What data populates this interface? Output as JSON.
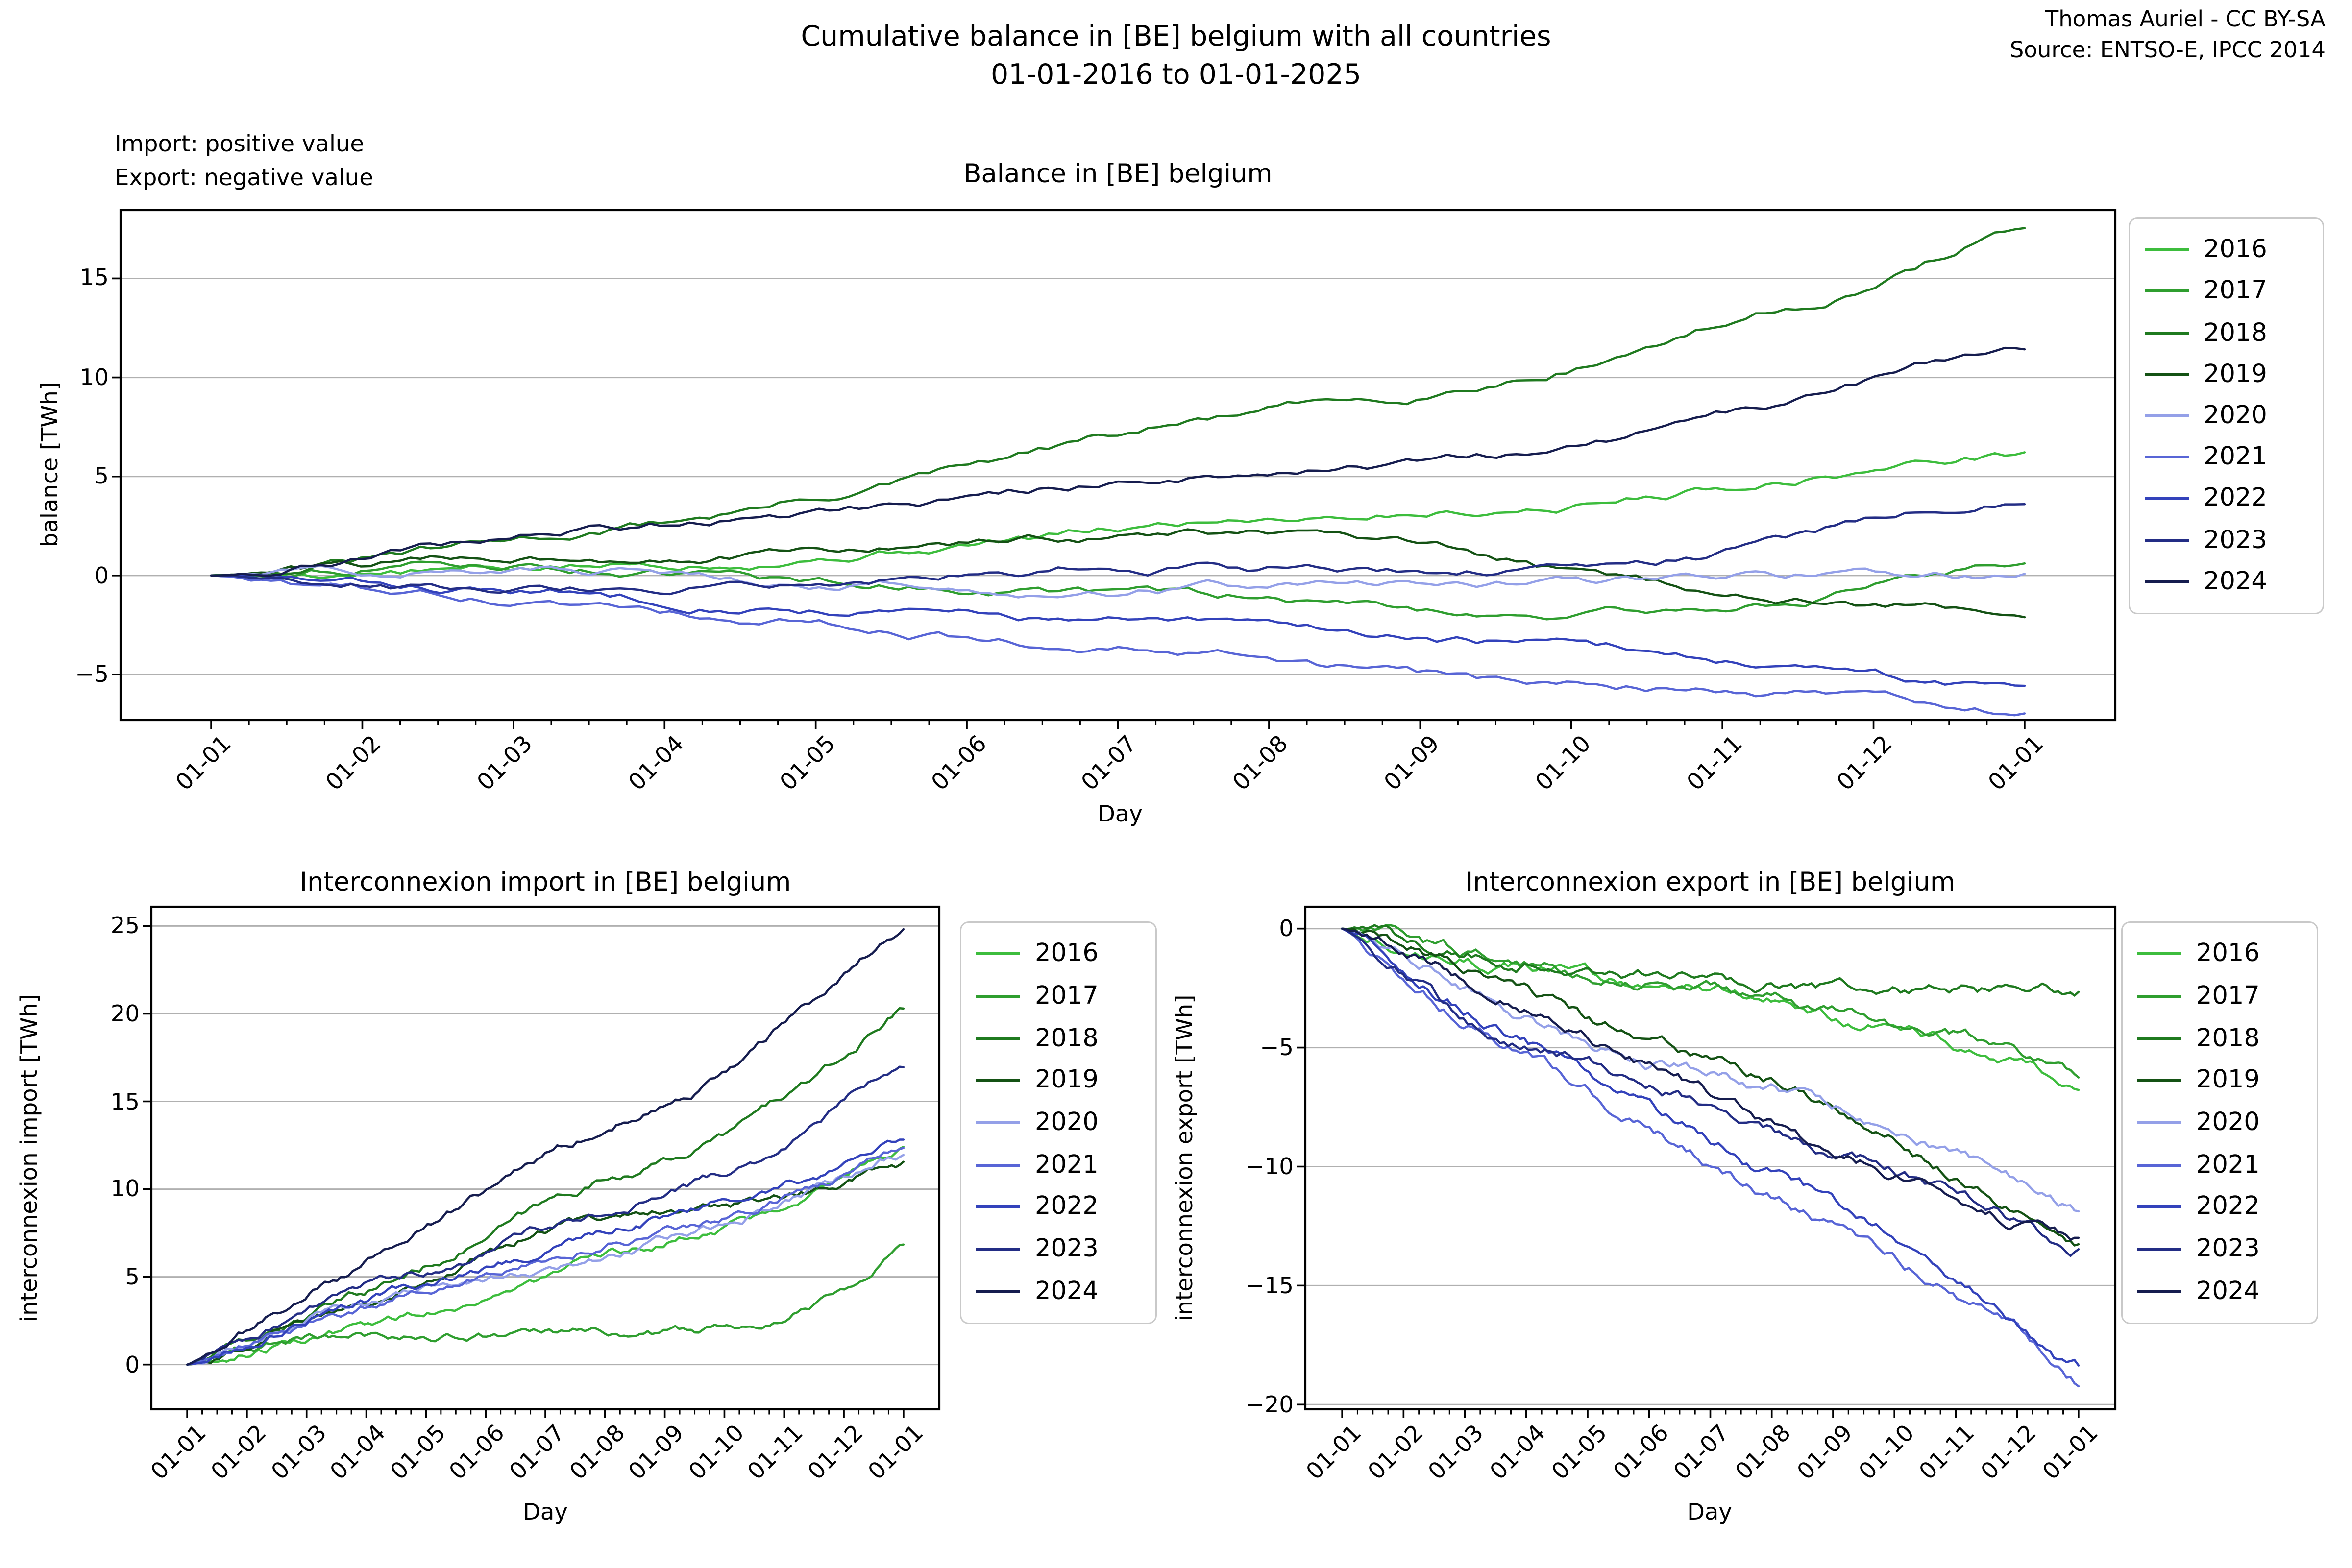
{
  "figure": {
    "title_line1": "Cumulative balance in [BE] belgium with all countries",
    "title_line2": "01-01-2016 to 01-01-2025",
    "credit_line1": "Thomas Auriel - CC BY-SA",
    "credit_line2": "Source: ENTSO-E, IPCC 2014",
    "note_line1": "Import: positive value",
    "note_line2": "Export: negative value"
  },
  "legend_years": [
    "2016",
    "2017",
    "2018",
    "2019",
    "2020",
    "2021",
    "2022",
    "2023",
    "2024"
  ],
  "chart_data": [
    {
      "id": "balance",
      "type": "line",
      "title": "Balance in [BE] belgium",
      "xlabel": "Day",
      "ylabel": "balance [TWh]",
      "grid": true,
      "legend_position": "right",
      "yticks": [
        -5,
        0,
        5,
        10,
        15
      ],
      "ylim": [
        -7.3,
        18.45
      ],
      "x_tick_labels": [
        "01-01",
        "01-02",
        "01-03",
        "01-04",
        "01-05",
        "01-06",
        "01-07",
        "01-08",
        "01-09",
        "01-10",
        "01-11",
        "01-12",
        "01-01"
      ],
      "series": [
        {
          "name": "2016",
          "color": "#3dbd3d",
          "values": [
            0,
            0.2,
            0.3,
            0.6,
            1.0,
            1.6,
            2.3,
            3.0,
            3.3,
            3.6,
            4.5,
            5.4,
            6.2
          ]
        },
        {
          "name": "2017",
          "color": "#2f9e2f",
          "values": [
            0,
            0.5,
            0.5,
            0.2,
            -0.3,
            -0.6,
            -0.9,
            -1.2,
            -1.7,
            -1.9,
            -1.6,
            -0.6,
            0.7
          ]
        },
        {
          "name": "2018",
          "color": "#1f7a1f",
          "values": [
            0,
            0.8,
            1.7,
            2.7,
            3.9,
            5.4,
            7.0,
            8.3,
            9.2,
            10.6,
            12.7,
            14.7,
            17.6
          ]
        },
        {
          "name": "2019",
          "color": "#145214",
          "values": [
            0,
            0.5,
            0.9,
            1.1,
            1.2,
            1.6,
            2.0,
            2.1,
            1.3,
            0.1,
            -0.8,
            -1.5,
            -1.8
          ]
        },
        {
          "name": "2020",
          "color": "#94a0e8",
          "values": [
            0,
            0.2,
            0.3,
            0.1,
            -0.3,
            -0.5,
            -0.6,
            -0.5,
            -0.5,
            -0.4,
            -0.1,
            0.0,
            0.0
          ]
        },
        {
          "name": "2021",
          "color": "#5865d6",
          "values": [
            0,
            -0.8,
            -1.4,
            -2.0,
            -2.5,
            -3.1,
            -3.7,
            -4.3,
            -5.1,
            -5.7,
            -5.8,
            -6.1,
            -6.8
          ]
        },
        {
          "name": "2022",
          "color": "#3342bb",
          "values": [
            0,
            -0.5,
            -0.8,
            -1.2,
            -1.6,
            -2.0,
            -2.4,
            -2.6,
            -3.1,
            -3.6,
            -4.2,
            -5.2,
            -5.7
          ]
        },
        {
          "name": "2023",
          "color": "#232d85",
          "values": [
            0,
            -0.4,
            -0.7,
            -0.5,
            -0.2,
            0.2,
            0.5,
            0.4,
            0.3,
            0.7,
            1.2,
            2.7,
            3.8
          ]
        },
        {
          "name": "2024",
          "color": "#161d4f",
          "values": [
            0,
            0.9,
            1.9,
            2.6,
            3.3,
            4.0,
            4.7,
            5.3,
            5.7,
            6.3,
            8.0,
            9.9,
            11.5
          ]
        }
      ]
    },
    {
      "id": "import",
      "type": "line",
      "title": "Interconnexion import in [BE] belgium",
      "xlabel": "Day",
      "ylabel": "interconnexion import [TWh]",
      "grid": true,
      "legend_position": "right",
      "yticks": [
        0,
        5,
        10,
        15,
        20,
        25
      ],
      "ylim": [
        -2.55,
        26.1
      ],
      "x_tick_labels": [
        "01-01",
        "01-02",
        "01-03",
        "01-04",
        "01-05",
        "01-06",
        "01-07",
        "01-08",
        "01-09",
        "01-10",
        "01-11",
        "01-12",
        "01-01"
      ],
      "series": [
        {
          "name": "2016",
          "color": "#3dbd3d",
          "values": [
            0,
            0.7,
            1.5,
            2.2,
            3.0,
            3.9,
            4.9,
            6.0,
            7.0,
            7.9,
            9.3,
            10.9,
            12.6
          ]
        },
        {
          "name": "2017",
          "color": "#2f9e2f",
          "values": [
            0,
            0.9,
            1.5,
            1.65,
            1.65,
            1.65,
            1.65,
            1.7,
            1.8,
            2.1,
            2.9,
            4.5,
            6.8
          ]
        },
        {
          "name": "2018",
          "color": "#1f7a1f",
          "values": [
            0,
            1.3,
            2.7,
            4.1,
            5.6,
            7.3,
            9.1,
            10.6,
            11.6,
            13.1,
            15.3,
            17.4,
            20.3
          ]
        },
        {
          "name": "2019",
          "color": "#145214",
          "values": [
            0,
            1.2,
            2.5,
            3.8,
            5.0,
            6.3,
            7.6,
            8.5,
            8.9,
            9.1,
            9.6,
            10.4,
            11.4
          ]
        },
        {
          "name": "2020",
          "color": "#94a0e8",
          "values": [
            0,
            1.3,
            2.7,
            3.8,
            4.5,
            5.0,
            5.5,
            6.3,
            7.1,
            8.0,
            9.3,
            10.6,
            11.9
          ]
        },
        {
          "name": "2021",
          "color": "#5865d6",
          "values": [
            0,
            1.2,
            2.4,
            3.4,
            4.4,
            5.3,
            6.2,
            7.0,
            7.6,
            8.3,
            9.5,
            10.9,
            12.3
          ]
        },
        {
          "name": "2022",
          "color": "#3342bb",
          "values": [
            0,
            1.3,
            2.6,
            3.6,
            4.6,
            5.6,
            6.6,
            7.7,
            8.5,
            9.3,
            10.2,
            11.2,
            12.8
          ]
        },
        {
          "name": "2023",
          "color": "#232d85",
          "values": [
            0,
            1.5,
            3.0,
            4.3,
            5.4,
            6.6,
            7.9,
            8.9,
            9.7,
            10.8,
            12.4,
            15.0,
            17.2
          ]
        },
        {
          "name": "2024",
          "color": "#161d4f",
          "values": [
            0,
            1.9,
            4.0,
            5.8,
            7.8,
            9.8,
            11.8,
            13.6,
            15.1,
            16.6,
            19.3,
            22.2,
            24.8
          ]
        }
      ]
    },
    {
      "id": "export",
      "type": "line",
      "title": "Interconnexion export in [BE] belgium",
      "xlabel": "Day",
      "ylabel": "interconnexion export [TWh]",
      "grid": true,
      "legend_position": "right",
      "yticks": [
        -20,
        -15,
        -10,
        -5,
        0
      ],
      "ylim": [
        -20.2,
        0.92
      ],
      "x_tick_labels": [
        "01-01",
        "01-02",
        "01-03",
        "01-04",
        "01-05",
        "01-06",
        "01-07",
        "01-08",
        "01-09",
        "01-10",
        "01-11",
        "01-12",
        "01-01"
      ],
      "series": [
        {
          "name": "2016",
          "color": "#3dbd3d",
          "values": [
            0,
            -0.5,
            -1.2,
            -1.6,
            -2.0,
            -2.3,
            -2.6,
            -3.0,
            -3.7,
            -4.3,
            -4.8,
            -5.5,
            -6.4
          ]
        },
        {
          "name": "2017",
          "color": "#2f9e2f",
          "values": [
            0,
            -0.4,
            -1.0,
            -1.5,
            -1.9,
            -2.2,
            -2.5,
            -2.9,
            -3.5,
            -4.0,
            -4.5,
            -5.1,
            -6.1
          ]
        },
        {
          "name": "2018",
          "color": "#1f7a1f",
          "values": [
            0,
            -0.5,
            -1.0,
            -1.4,
            -1.7,
            -1.9,
            -2.1,
            -2.3,
            -2.4,
            -2.5,
            -2.6,
            -2.7,
            -2.7
          ]
        },
        {
          "name": "2019",
          "color": "#145214",
          "values": [
            0,
            -0.7,
            -1.6,
            -2.7,
            -3.8,
            -4.7,
            -5.6,
            -6.4,
            -7.6,
            -9.0,
            -10.4,
            -11.9,
            -13.2
          ]
        },
        {
          "name": "2020",
          "color": "#94a0e8",
          "values": [
            0,
            -1.1,
            -2.4,
            -3.7,
            -4.8,
            -5.5,
            -6.1,
            -6.8,
            -7.6,
            -8.4,
            -9.4,
            -10.6,
            -11.9
          ]
        },
        {
          "name": "2021",
          "color": "#5865d6",
          "values": [
            0,
            -2.0,
            -3.8,
            -5.4,
            -6.9,
            -8.4,
            -9.9,
            -11.3,
            -12.7,
            -14.0,
            -15.3,
            -17.0,
            -19.1
          ]
        },
        {
          "name": "2022",
          "color": "#3342bb",
          "values": [
            0,
            -1.8,
            -3.4,
            -4.8,
            -6.2,
            -7.6,
            -9.0,
            -10.3,
            -11.6,
            -12.9,
            -14.4,
            -16.4,
            -18.5
          ]
        },
        {
          "name": "2023",
          "color": "#232d85",
          "values": [
            0,
            -1.9,
            -3.7,
            -4.8,
            -5.6,
            -6.4,
            -7.4,
            -8.5,
            -9.4,
            -10.1,
            -11.2,
            -12.3,
            -13.4
          ]
        },
        {
          "name": "2024",
          "color": "#161d4f",
          "values": [
            0,
            -1.0,
            -2.1,
            -3.2,
            -4.5,
            -5.8,
            -7.1,
            -8.3,
            -9.4,
            -10.3,
            -11.3,
            -12.3,
            -13.3
          ]
        }
      ]
    }
  ]
}
